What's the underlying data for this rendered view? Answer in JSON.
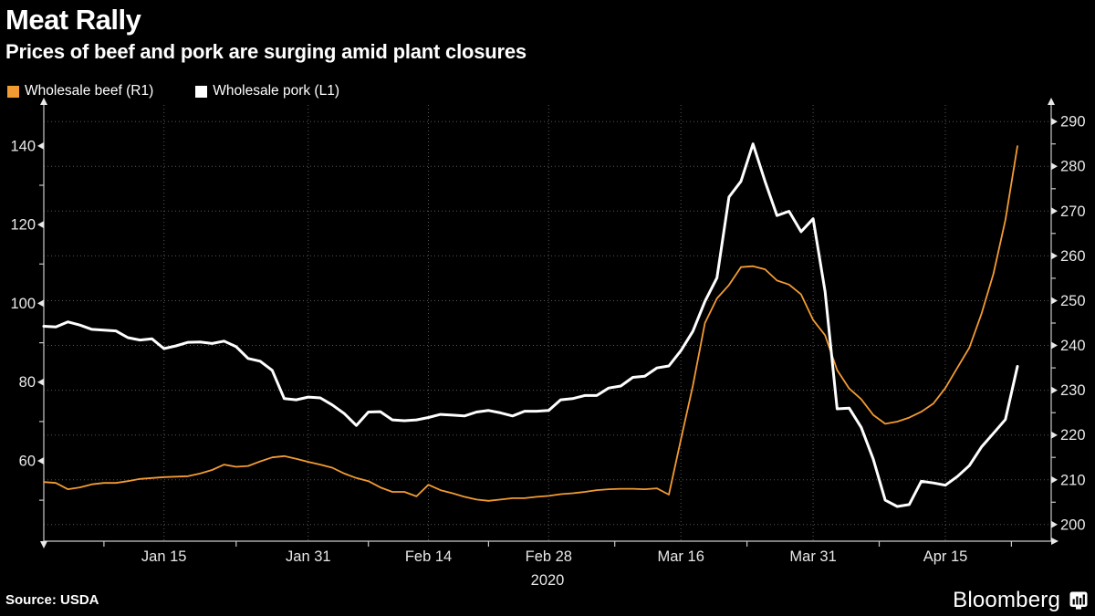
{
  "title": "Meat Rally",
  "subtitle": "Prices of beef and pork are surging amid plant closures",
  "legend": [
    {
      "key": "beef",
      "label": "Wholesale beef (R1)",
      "color": "#f39b33"
    },
    {
      "key": "pork",
      "label": "Wholesale pork (L1)",
      "color": "#ffffff"
    }
  ],
  "source": {
    "label": "Source: USDA"
  },
  "brand": {
    "name": "Bloomberg",
    "icon": "bloomberg-terminal-icon"
  },
  "colors": {
    "background": "#000000",
    "title_text": "#ffffff",
    "axis_label": "#e8e8e8",
    "grid": "#575757",
    "axis_line": "#c9c9c9",
    "beef": "#f39b33",
    "pork": "#ffffff"
  },
  "chart_data": {
    "type": "line",
    "title": "Meat Rally",
    "subtitle": "Prices of beef and pork are surging amid plant closures",
    "grid": "dotted",
    "year_label": "2020",
    "x": [
      "Jan 1",
      "Jan 2",
      "Jan 3",
      "Jan 6",
      "Jan 7",
      "Jan 8",
      "Jan 9",
      "Jan 10",
      "Jan 13",
      "Jan 14",
      "Jan 15",
      "Jan 16",
      "Jan 17",
      "Jan 20",
      "Jan 21",
      "Jan 22",
      "Jan 23",
      "Jan 24",
      "Jan 27",
      "Jan 28",
      "Jan 29",
      "Jan 30",
      "Jan 31",
      "Feb 3",
      "Feb 4",
      "Feb 5",
      "Feb 6",
      "Feb 7",
      "Feb 10",
      "Feb 11",
      "Feb 12",
      "Feb 13",
      "Feb 14",
      "Feb 17",
      "Feb 18",
      "Feb 19",
      "Feb 20",
      "Feb 21",
      "Feb 24",
      "Feb 25",
      "Feb 26",
      "Feb 27",
      "Feb 28",
      "Mar 2",
      "Mar 3",
      "Mar 4",
      "Mar 5",
      "Mar 6",
      "Mar 9",
      "Mar 10",
      "Mar 11",
      "Mar 12",
      "Mar 13",
      "Mar 16",
      "Mar 17",
      "Mar 18",
      "Mar 19",
      "Mar 20",
      "Mar 23",
      "Mar 24",
      "Mar 25",
      "Mar 26",
      "Mar 27",
      "Mar 30",
      "Mar 31",
      "Apr 1",
      "Apr 2",
      "Apr 3",
      "Apr 6",
      "Apr 7",
      "Apr 8",
      "Apr 9",
      "Apr 10",
      "Apr 13",
      "Apr 14",
      "Apr 15",
      "Apr 16",
      "Apr 17",
      "Apr 20",
      "Apr 21",
      "Apr 22",
      "Apr 23"
    ],
    "x_ticks": [
      "Jan 15",
      "Jan 31",
      "Feb 14",
      "Feb 28",
      "Mar 16",
      "Mar 31",
      "Apr 15"
    ],
    "series": [
      {
        "key": "beef",
        "name": "Wholesale beef (R1)",
        "axis": "right",
        "color": "#f39b33",
        "width": 1.8,
        "values": [
          209.5,
          209.3,
          207.9,
          208.3,
          209.0,
          209.3,
          209.3,
          209.7,
          210.2,
          210.4,
          210.6,
          210.7,
          210.8,
          211.4,
          212.2,
          213.4,
          212.9,
          213.1,
          214.1,
          215.0,
          215.3,
          214.7,
          214.0,
          213.4,
          212.7,
          211.4,
          210.4,
          209.7,
          208.3,
          207.3,
          207.3,
          206.3,
          208.9,
          207.7,
          207.0,
          206.2,
          205.6,
          205.3,
          205.6,
          205.9,
          205.9,
          206.2,
          206.4,
          206.8,
          207.0,
          207.3,
          207.7,
          207.9,
          208.0,
          208.0,
          207.9,
          208.1,
          206.7,
          219.0,
          231.0,
          245.0,
          250.5,
          253.5,
          257.5,
          257.7,
          257.0,
          254.5,
          253.6,
          251.4,
          245.7,
          242.3,
          234.5,
          230.4,
          228.0,
          224.5,
          222.5,
          223.0,
          223.9,
          225.2,
          227.0,
          230.5,
          235.0,
          239.5,
          247.0,
          256.0,
          268.0,
          284.5
        ]
      },
      {
        "key": "pork",
        "name": "Wholesale pork (L1)",
        "axis": "left",
        "color": "#ffffff",
        "width": 3,
        "values": [
          94.2,
          94.0,
          95.3,
          94.5,
          93.4,
          93.2,
          93.0,
          91.3,
          90.7,
          91.0,
          88.5,
          89.2,
          90.1,
          90.2,
          89.8,
          90.4,
          89.0,
          86.0,
          85.3,
          83.0,
          75.8,
          75.5,
          76.2,
          76.0,
          74.2,
          72.0,
          69.0,
          72.4,
          72.5,
          70.4,
          70.2,
          70.4,
          71.0,
          71.8,
          71.6,
          71.4,
          72.4,
          72.8,
          72.2,
          71.4,
          72.6,
          72.6,
          72.8,
          75.5,
          75.8,
          76.6,
          76.6,
          78.5,
          79.0,
          81.2,
          81.5,
          83.6,
          84.1,
          88.0,
          92.9,
          100.5,
          106.5,
          127.0,
          131.0,
          140.5,
          131.0,
          122.3,
          123.4,
          118.2,
          121.5,
          103.0,
          73.2,
          73.4,
          68.5,
          60.5,
          50.0,
          48.4,
          48.9,
          54.8,
          54.4,
          53.8,
          56.0,
          58.8,
          63.5,
          67.0,
          70.5,
          84.0
        ]
      }
    ],
    "left_axis": {
      "range": [
        39.6,
        150.4
      ],
      "ticks": [
        140,
        120,
        100,
        80,
        60
      ],
      "minor_ticks": [
        130,
        110,
        90,
        70,
        50
      ]
    },
    "right_axis": {
      "range": [
        196.3,
        293.7
      ],
      "ticks": [
        290,
        280,
        270,
        260,
        250,
        240,
        230,
        220,
        210,
        200
      ],
      "minor_ticks": [
        285,
        275,
        265,
        255,
        245,
        235,
        225,
        215,
        205
      ]
    }
  }
}
